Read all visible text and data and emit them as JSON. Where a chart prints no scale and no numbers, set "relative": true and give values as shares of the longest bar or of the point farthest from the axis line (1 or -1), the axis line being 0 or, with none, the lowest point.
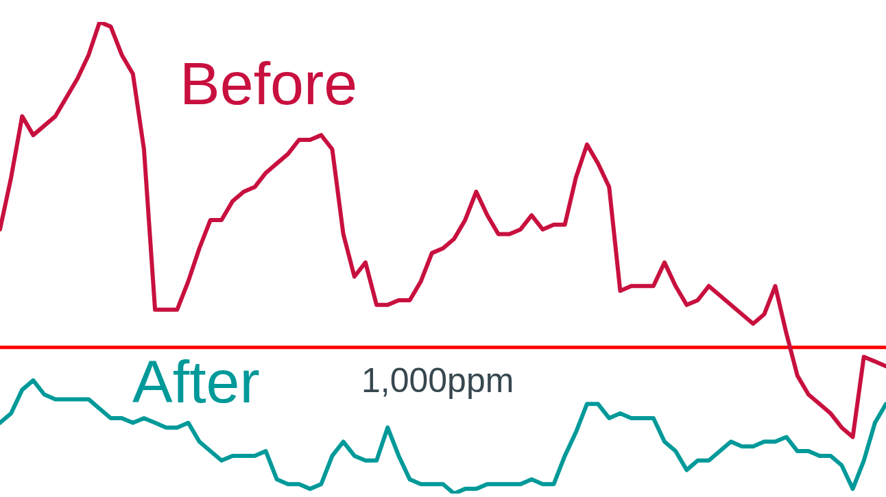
{
  "chart_data": {
    "type": "line",
    "relative": true,
    "categories": [
      null,
      null,
      null,
      null,
      null,
      null,
      null,
      null,
      null,
      null,
      null,
      null,
      null,
      null,
      null,
      null,
      null,
      null,
      null,
      null,
      null,
      null,
      null,
      null,
      null,
      null,
      null,
      null,
      null,
      null,
      null,
      null,
      null,
      null,
      null,
      null,
      null,
      null,
      null,
      null,
      null,
      null,
      null,
      null,
      null,
      null,
      null,
      null,
      null,
      null,
      null,
      null,
      null,
      null,
      null,
      null,
      null,
      null,
      null,
      null,
      null,
      null,
      null,
      null,
      null,
      null,
      null,
      null,
      null,
      null,
      null,
      null,
      null,
      null,
      null,
      null,
      null,
      null,
      null,
      null,
      null
    ],
    "series": [
      {
        "name": "Before",
        "color": "#c8103f",
        "values": [
          0.56,
          0.67,
          0.8,
          0.76,
          0.78,
          0.8,
          0.84,
          0.88,
          0.93,
          1.0,
          0.99,
          0.93,
          0.89,
          0.73,
          0.39,
          0.39,
          0.39,
          0.45,
          0.52,
          0.58,
          0.58,
          0.62,
          0.64,
          0.65,
          0.68,
          0.7,
          0.72,
          0.75,
          0.75,
          0.76,
          0.73,
          0.55,
          0.46,
          0.49,
          0.4,
          0.4,
          0.41,
          0.41,
          0.45,
          0.51,
          0.52,
          0.54,
          0.58,
          0.64,
          0.59,
          0.55,
          0.55,
          0.56,
          0.59,
          0.56,
          0.57,
          0.57,
          0.67,
          0.74,
          0.7,
          0.65,
          0.43,
          0.44,
          0.44,
          0.44,
          0.49,
          0.44,
          0.4,
          0.41,
          0.44,
          0.42,
          0.4,
          0.38,
          0.36,
          0.38,
          0.44,
          0.34,
          0.25,
          0.21,
          0.19,
          0.17,
          0.14,
          0.12,
          0.29,
          0.28,
          0.27
        ]
      },
      {
        "name": "After",
        "color": "#009999",
        "values": [
          0.15,
          0.17,
          0.22,
          0.24,
          0.21,
          0.2,
          0.2,
          0.2,
          0.2,
          0.18,
          0.16,
          0.16,
          0.15,
          0.16,
          0.15,
          0.14,
          0.14,
          0.15,
          0.11,
          0.09,
          0.07,
          0.08,
          0.08,
          0.08,
          0.09,
          0.03,
          0.02,
          0.02,
          0.01,
          0.02,
          0.08,
          0.11,
          0.08,
          0.07,
          0.07,
          0.14,
          0.08,
          0.03,
          0.02,
          0.02,
          0.02,
          0,
          0.01,
          0.01,
          0.02,
          0.02,
          0.02,
          0.02,
          0.03,
          0.02,
          0.02,
          0.08,
          0.13,
          0.19,
          0.19,
          0.16,
          0.17,
          0.16,
          0.16,
          0.16,
          0.11,
          0.09,
          0.05,
          0.07,
          0.07,
          0.09,
          0.11,
          0.1,
          0.1,
          0.11,
          0.11,
          0.12,
          0.09,
          0.09,
          0.08,
          0.08,
          0.06,
          0.01,
          0.07,
          0.15,
          0.19
        ]
      }
    ],
    "ref_lines": [
      {
        "axis": "y",
        "value": 0.31,
        "label": "1,000ppm",
        "color": "#ff0000"
      }
    ]
  }
}
